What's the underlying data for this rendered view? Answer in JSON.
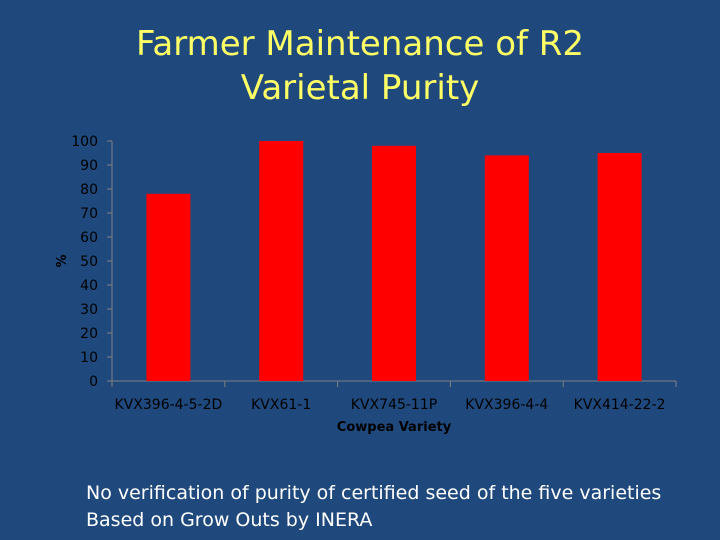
{
  "slide": {
    "title_line1": "Farmer Maintenance of R2",
    "title_line2": "Varietal Purity",
    "footnote_line1": "No verification of purity of certified seed of the five varieties",
    "footnote_line2": "Based on Grow Outs by INERA"
  },
  "colors": {
    "background": "#1f497d",
    "title": "#ffff66",
    "bar": "#ff0000",
    "axis_text": "#000000"
  },
  "chart_data": {
    "type": "bar",
    "title": "",
    "xlabel": "Cowpea Variety",
    "ylabel": "%",
    "categories": [
      "KVX396-4-5-2D",
      "KVX61-1",
      "KVX745-11P",
      "KVX396-4-4",
      "KVX414-22-2"
    ],
    "values": [
      78,
      100,
      98,
      94,
      95
    ],
    "ylim": [
      0,
      100
    ],
    "yticks": [
      0,
      10,
      20,
      30,
      40,
      50,
      60,
      70,
      80,
      90,
      100
    ],
    "grid": false,
    "legend": "none"
  }
}
